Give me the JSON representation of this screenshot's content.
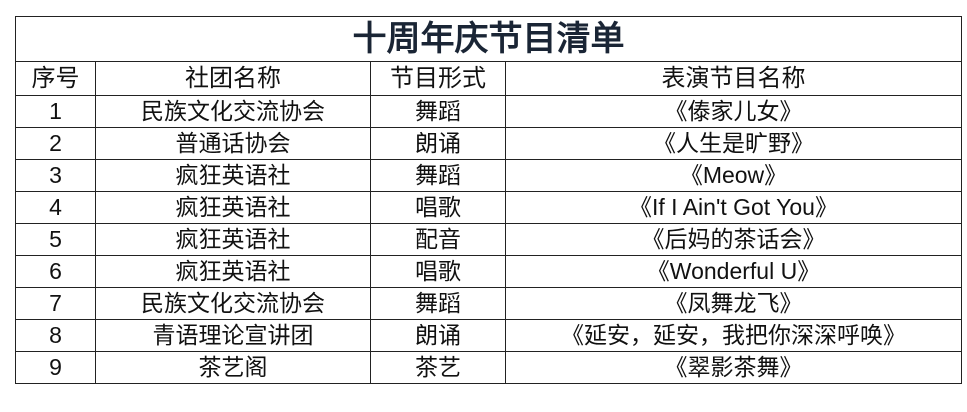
{
  "title": "十周年庆节目清单",
  "headers": [
    "序号",
    "社团名称",
    "节目形式",
    "表演节目名称"
  ],
  "rows": [
    {
      "no": "1",
      "club": "民族文化交流协会",
      "form": "舞蹈",
      "name": "《傣家儿女》"
    },
    {
      "no": "2",
      "club": "普通话协会",
      "form": "朗诵",
      "name": "《人生是旷野》"
    },
    {
      "no": "3",
      "club": "疯狂英语社",
      "form": "舞蹈",
      "name": "《Meow》"
    },
    {
      "no": "4",
      "club": "疯狂英语社",
      "form": "唱歌",
      "name": "《If I Ain't Got You》"
    },
    {
      "no": "5",
      "club": "疯狂英语社",
      "form": "配音",
      "name": "《后妈的茶话会》"
    },
    {
      "no": "6",
      "club": "疯狂英语社",
      "form": "唱歌",
      "name": "《Wonderful  U》"
    },
    {
      "no": "7",
      "club": "民族文化交流协会",
      "form": "舞蹈",
      "name": "《凤舞龙飞》"
    },
    {
      "no": "8",
      "club": "青语理论宣讲团",
      "form": "朗诵",
      "name": "《延安，延安，我把你深深呼唤》"
    },
    {
      "no": "9",
      "club": "茶艺阁",
      "form": "茶艺",
      "name": "《翠影茶舞》"
    }
  ]
}
